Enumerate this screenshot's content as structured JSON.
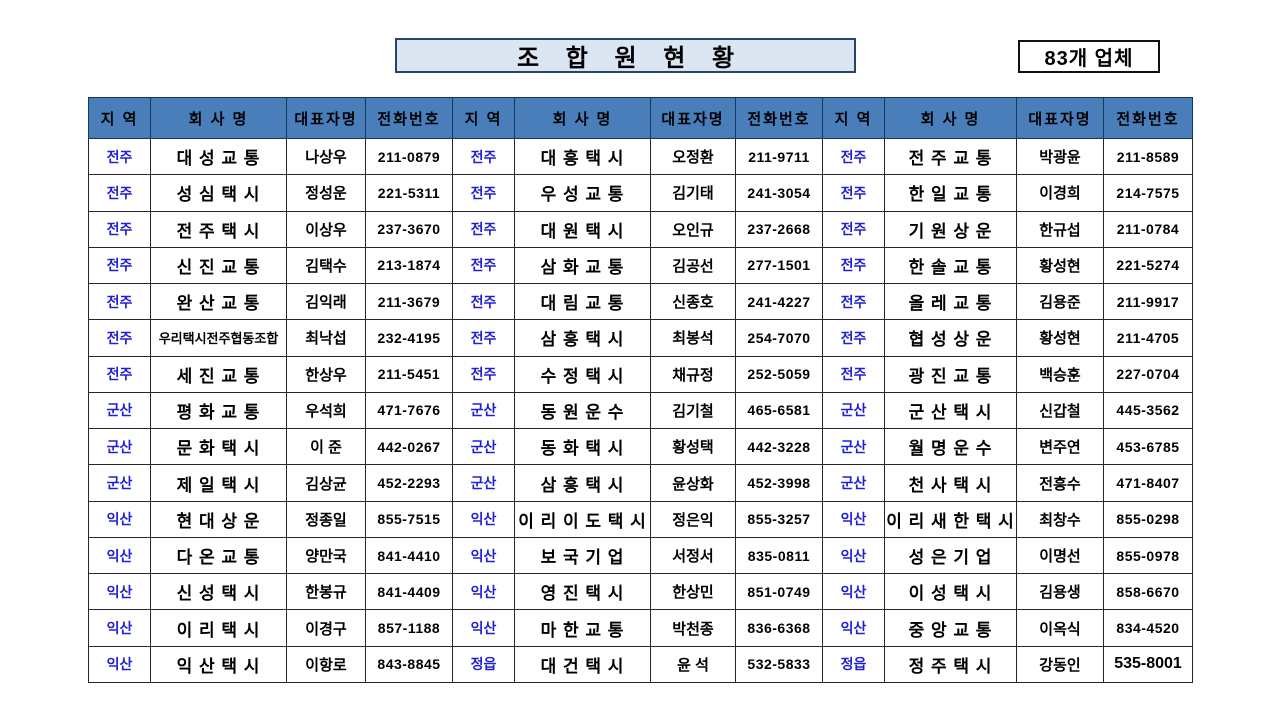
{
  "title": "조 합 원 현 황",
  "count_badge": "83개 업체",
  "colors": {
    "header_bg": "#4a7ebb",
    "region_text": "#1f1fd6",
    "title_box_bg": "#dce6f2",
    "title_box_border": "#24466b"
  },
  "table": {
    "headers": [
      "지 역",
      "회 사 명",
      "대표자명",
      "전화번호"
    ],
    "header_repeat": 3,
    "rows": [
      [
        "전주",
        "대 성 교 통",
        "나상우",
        "211-0879",
        "전주",
        "대 흥 택 시",
        "오정환",
        "211-9711",
        "전주",
        "전 주 교 통",
        "박광윤",
        "211-8589"
      ],
      [
        "전주",
        "성 심 택 시",
        "정성운",
        "221-5311",
        "전주",
        "우 성 교 통",
        "김기태",
        "241-3054",
        "전주",
        "한 일 교 통",
        "이경희",
        "214-7575"
      ],
      [
        "전주",
        "전 주 택 시",
        "이상우",
        "237-3670",
        "전주",
        "대 원 택 시",
        "오인규",
        "237-2668",
        "전주",
        "기 원 상 운",
        "한규섭",
        "211-0784"
      ],
      [
        "전주",
        "신 진 교 통",
        "김택수",
        "213-1874",
        "전주",
        "삼 화 교 통",
        "김공선",
        "277-1501",
        "전주",
        "한 솔 교 통",
        "황성현",
        "221-5274"
      ],
      [
        "전주",
        "완 산 교 통",
        "김익래",
        "211-3679",
        "전주",
        "대 림 교 통",
        "신종호",
        "241-4227",
        "전주",
        "올 레 교 통",
        "김용준",
        "211-9917"
      ],
      [
        "전주",
        "우리택시전주협동조합",
        "최낙섭",
        "232-4195",
        "전주",
        "삼 흥 택 시",
        "최봉석",
        "254-7070",
        "전주",
        "협 성 상 운",
        "황성현",
        "211-4705"
      ],
      [
        "전주",
        "세 진 교 통",
        "한상우",
        "211-5451",
        "전주",
        "수 정 택 시",
        "채규정",
        "252-5059",
        "전주",
        "광 진 교 통",
        "백승훈",
        "227-0704"
      ],
      [
        "군산",
        "평 화 교 통",
        "우석희",
        "471-7676",
        "군산",
        "동 원 운 수",
        "김기철",
        "465-6581",
        "군산",
        "군 산 택 시",
        "신갑철",
        "445-3562"
      ],
      [
        "군산",
        "문 화 택 시",
        "이  준",
        "442-0267",
        "군산",
        "동 화 택 시",
        "황성택",
        "442-3228",
        "군산",
        "월 명 운 수",
        "변주연",
        "453-6785"
      ],
      [
        "군산",
        "제 일 택 시",
        "김상균",
        "452-2293",
        "군산",
        "삼 흥 택 시",
        "윤상화",
        "452-3998",
        "군산",
        "천 사 택 시",
        "전흥수",
        "471-8407"
      ],
      [
        "익산",
        "현 대 상 운",
        "정종일",
        "855-7515",
        "익산",
        "이 리 이 도 택 시",
        "정은익",
        "855-3257",
        "익산",
        "이 리 새 한 택 시",
        "최창수",
        "855-0298"
      ],
      [
        "익산",
        "다 온 교 통",
        "양만국",
        "841-4410",
        "익산",
        "보 국 기 업",
        "서정서",
        "835-0811",
        "익산",
        "성 은 기 업",
        "이명선",
        "855-0978"
      ],
      [
        "익산",
        "신 성 택 시",
        "한봉규",
        "841-4409",
        "익산",
        "영 진 택 시",
        "한상민",
        "851-0749",
        "익산",
        "이 성 택 시",
        "김용생",
        "858-6670"
      ],
      [
        "익산",
        "이 리 택 시",
        "이경구",
        "857-1188",
        "익산",
        "마 한 교 통",
        "박천종",
        "836-6368",
        "익산",
        "중 앙 교 통",
        "이옥식",
        "834-4520"
      ],
      [
        "익산",
        "익 산 택 시",
        "이항로",
        "843-8845",
        "정읍",
        "대 건 택 시",
        "윤  석",
        "532-5833",
        "정읍",
        "정 주 택 시",
        "강동인",
        "535-8001"
      ]
    ],
    "emphasized_cell": {
      "row": 14,
      "col": 11
    }
  }
}
